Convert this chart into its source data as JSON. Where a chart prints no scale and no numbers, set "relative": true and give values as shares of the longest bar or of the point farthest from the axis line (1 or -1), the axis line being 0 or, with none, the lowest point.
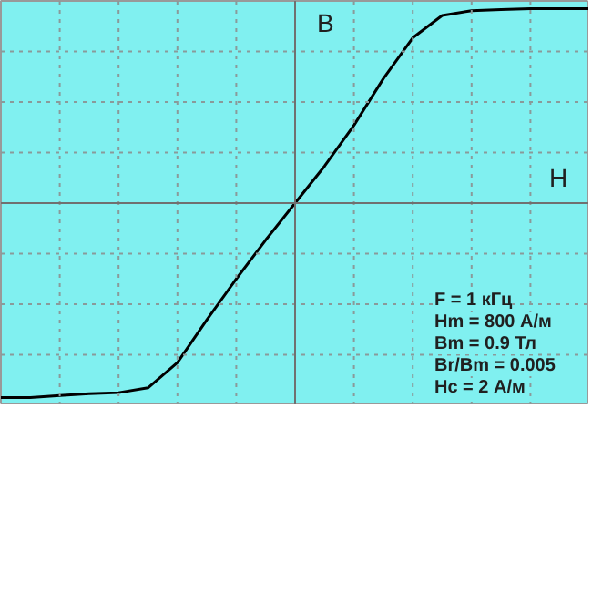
{
  "chart_data": {
    "type": "line",
    "relative": true,
    "xlabel": "H",
    "ylabel": "B",
    "grid": true,
    "tick_labels": false,
    "categories": [
      null,
      null,
      null,
      null,
      null,
      null,
      null,
      null,
      null,
      null,
      null,
      null,
      null,
      null,
      null,
      null,
      null,
      null,
      null,
      null,
      null
    ],
    "series": [
      {
        "color": "#000000",
        "values": [
          -1.0,
          -1.0,
          -0.99,
          -0.98,
          -0.975,
          -0.95,
          -0.82,
          -0.6,
          -0.39,
          -0.19,
          0.0,
          0.19,
          0.4,
          0.64,
          0.85,
          0.965,
          0.99,
          0.995,
          1.0,
          1.0,
          1.0
        ]
      }
    ],
    "annotations": [
      "F = 1 кГц",
      "Hm = 800 А/м",
      "Bm = 0.9 Тл",
      "Br/Bm = 0.005",
      "Hc = 2 А/м"
    ]
  }
}
